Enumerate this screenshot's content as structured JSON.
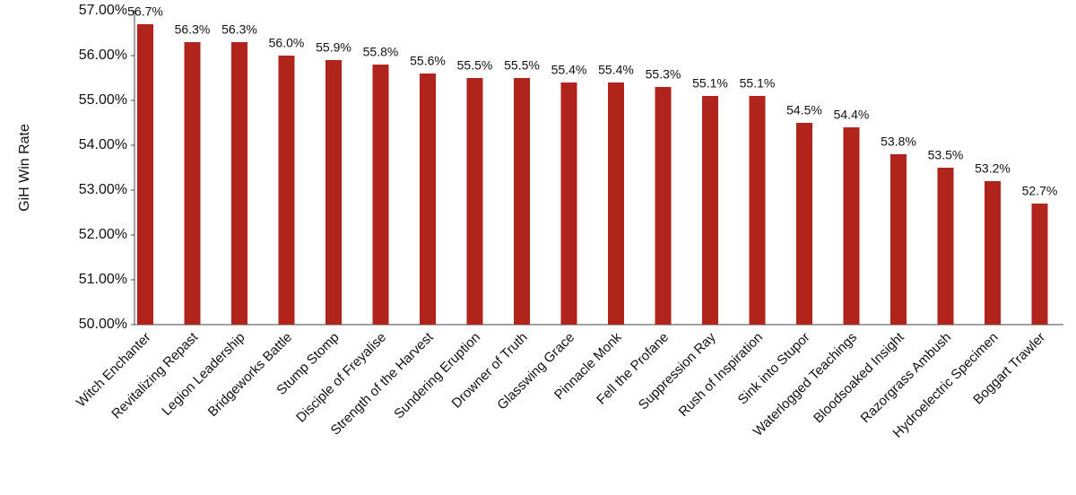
{
  "chart_data": {
    "type": "bar",
    "y_label": "GiH Win Rate",
    "categories": [
      "Witch Enchanter",
      "Revitalizing Repast",
      "Legion Leadership",
      "Bridgeworks Battle",
      "Stump Stomp",
      "Disciple of Freyalise",
      "Strength of the Harvest",
      "Sundering Eruption",
      "Drowner of Truth",
      "Glasswing Grace",
      "Pinnacle Monk",
      "Fell the Profane",
      "Suppression Ray",
      "Rush of Inspiration",
      "Sink into Stupor",
      "Waterlogged Teachings",
      "Bloodsoaked Insight",
      "Razorgrass Ambush",
      "Hydroelectric Specimen",
      "Boggart Trawler"
    ],
    "values": [
      56.7,
      56.3,
      56.3,
      56.0,
      55.9,
      55.8,
      55.6,
      55.5,
      55.5,
      55.4,
      55.4,
      55.3,
      55.1,
      55.1,
      54.5,
      54.4,
      53.8,
      53.5,
      53.2,
      52.7
    ],
    "value_labels": [
      "56.7%",
      "56.3%",
      "56.3%",
      "56.0%",
      "55.9%",
      "55.8%",
      "55.6%",
      "55.5%",
      "55.5%",
      "55.4%",
      "55.4%",
      "55.3%",
      "55.1%",
      "55.1%",
      "54.5%",
      "54.4%",
      "53.8%",
      "53.5%",
      "53.2%",
      "52.7%"
    ],
    "color": "#b0241c",
    "ylim": [
      50,
      57
    ],
    "yticks": [
      {
        "value": 50,
        "label": "50.00%"
      },
      {
        "value": 51,
        "label": "51.00%"
      },
      {
        "value": 52,
        "label": "52.00%"
      },
      {
        "value": 53,
        "label": "53.00%"
      },
      {
        "value": 54,
        "label": "54.00%"
      },
      {
        "value": 55,
        "label": "55.00%"
      },
      {
        "value": 56,
        "label": "56.00%"
      },
      {
        "value": 57,
        "label": "57.00%"
      }
    ],
    "grid": false
  }
}
